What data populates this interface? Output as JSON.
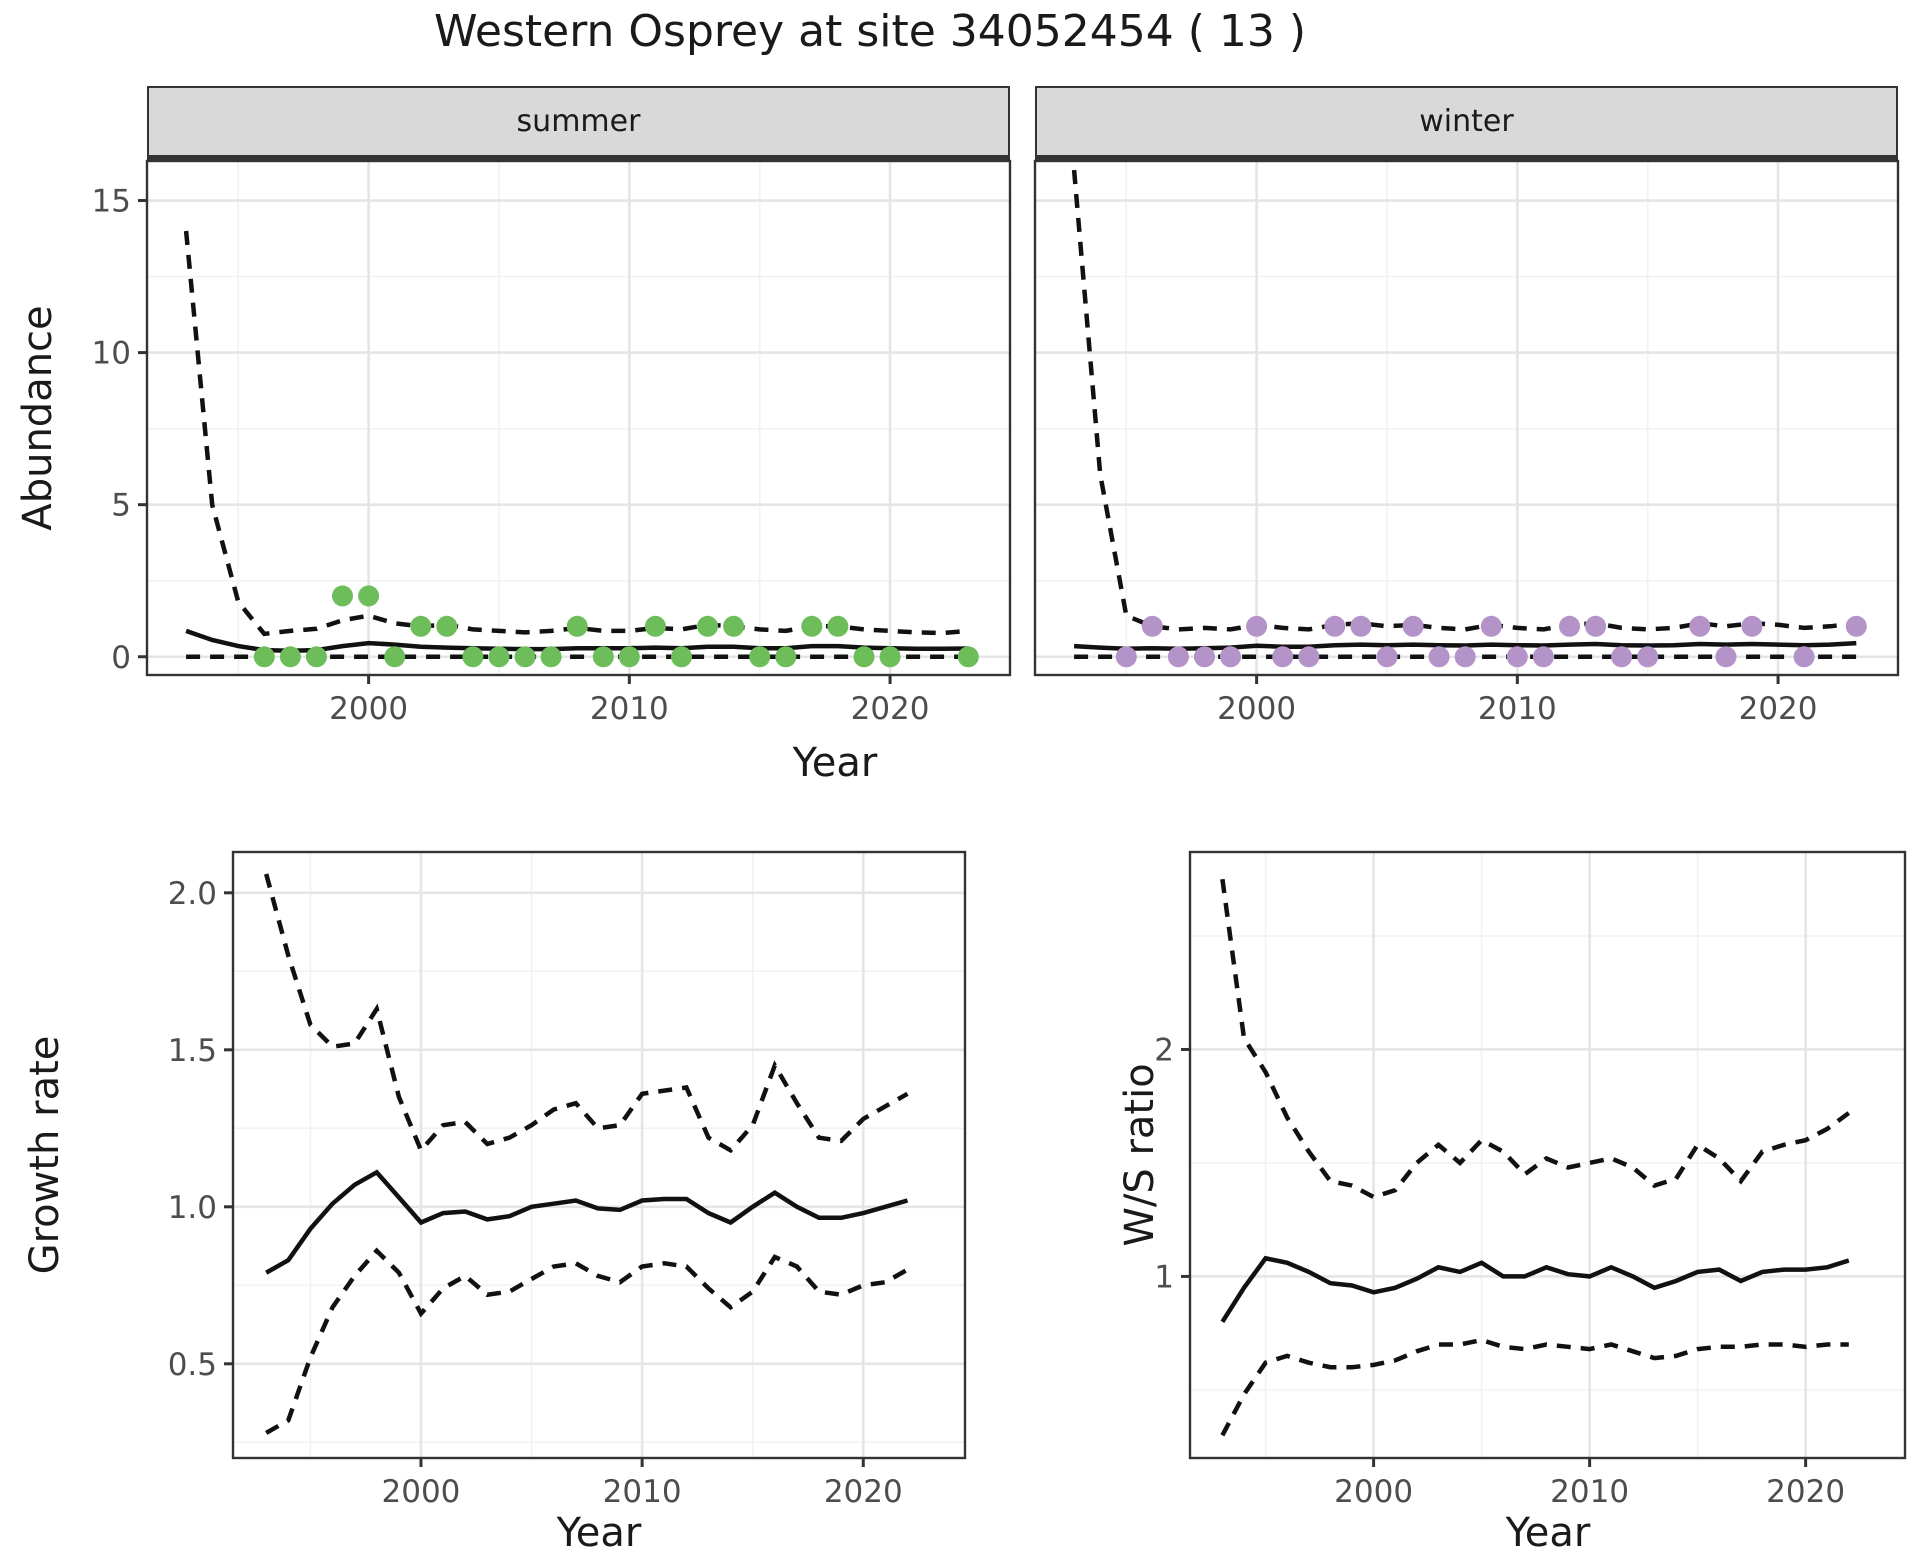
{
  "title": "Western Osprey at site 34052454 ( 13 )",
  "colors": {
    "summer_point": "#6DBE5B",
    "winter_point": "#B493C8",
    "line": "#111111",
    "grid_major": "#E5E5E5",
    "grid_minor": "#F2F2F2",
    "strip_bg": "#D9D9D9",
    "panel_border": "#333333",
    "axis_text": "#4D4D4D"
  },
  "chart_data": {
    "type": "line",
    "xlabel": "Year",
    "x_domain": [
      1991.5,
      2024.6
    ],
    "x_ticks": [
      2000,
      2010,
      2020
    ],
    "x_tick_labels": [
      "2000",
      "2010",
      "2020"
    ],
    "x_minor": [
      1995,
      2005,
      2015
    ],
    "panels": [
      {
        "id": "abundance-summer",
        "strip_label": "summer",
        "ylabel": "Abundance",
        "y_domain": [
          -0.6,
          16.3
        ],
        "y_ticks": [
          0,
          5,
          10,
          15
        ],
        "y_tick_labels": [
          "0",
          "5",
          "10",
          "15"
        ],
        "y_minor": [
          2.5,
          7.5,
          12.5
        ],
        "years": [
          1993,
          1994,
          1995,
          1996,
          1997,
          1998,
          1999,
          2000,
          2001,
          2002,
          2003,
          2004,
          2005,
          2006,
          2007,
          2008,
          2009,
          2010,
          2011,
          2012,
          2013,
          2014,
          2015,
          2016,
          2017,
          2018,
          2019,
          2020,
          2021,
          2022,
          2023
        ],
        "median": [
          0.85,
          0.55,
          0.35,
          0.22,
          0.2,
          0.22,
          0.35,
          0.45,
          0.4,
          0.33,
          0.3,
          0.28,
          0.26,
          0.25,
          0.25,
          0.28,
          0.28,
          0.28,
          0.3,
          0.28,
          0.33,
          0.33,
          0.28,
          0.28,
          0.35,
          0.35,
          0.3,
          0.28,
          0.26,
          0.26,
          0.27
        ],
        "upper": [
          14.0,
          5.0,
          1.8,
          0.75,
          0.85,
          0.92,
          1.2,
          1.35,
          1.1,
          1.0,
          1.05,
          0.9,
          0.85,
          0.8,
          0.85,
          0.95,
          0.85,
          0.85,
          0.95,
          0.9,
          1.05,
          1.0,
          0.9,
          0.85,
          1.0,
          1.0,
          0.9,
          0.85,
          0.8,
          0.78,
          0.85
        ],
        "lower": [
          0,
          0,
          0,
          0,
          0,
          0,
          0,
          0,
          0,
          0,
          0,
          0,
          0,
          0,
          0,
          0,
          0,
          0,
          0,
          0,
          0,
          0,
          0,
          0,
          0,
          0,
          0,
          0,
          0,
          0,
          0
        ],
        "points_years": [
          1996,
          1997,
          1998,
          1999,
          2000,
          2001,
          2002,
          2003,
          2004,
          2005,
          2006,
          2007,
          2008,
          2009,
          2010,
          2011,
          2012,
          2013,
          2014,
          2015,
          2016,
          2017,
          2018,
          2019,
          2020,
          2023
        ],
        "points_values": [
          0,
          0,
          0,
          2,
          2,
          0,
          1,
          1,
          0,
          0,
          0,
          0,
          1,
          0,
          0,
          1,
          0,
          1,
          1,
          0,
          0,
          1,
          1,
          0,
          0,
          0
        ],
        "point_color": "#6DBE5B"
      },
      {
        "id": "abundance-winter",
        "strip_label": "winter",
        "y_domain": [
          -0.6,
          16.3
        ],
        "y_ticks": [
          0,
          5,
          10,
          15
        ],
        "y_tick_labels": [
          "0",
          "5",
          "10",
          "15"
        ],
        "y_minor": [
          2.5,
          7.5,
          12.5
        ],
        "years": [
          1993,
          1994,
          1995,
          1996,
          1997,
          1998,
          1999,
          2000,
          2001,
          2002,
          2003,
          2004,
          2005,
          2006,
          2007,
          2008,
          2009,
          2010,
          2011,
          2012,
          2013,
          2014,
          2015,
          2016,
          2017,
          2018,
          2019,
          2020,
          2021,
          2022,
          2023
        ],
        "median": [
          0.35,
          0.3,
          0.26,
          0.28,
          0.26,
          0.28,
          0.3,
          0.36,
          0.33,
          0.33,
          0.38,
          0.4,
          0.38,
          0.4,
          0.38,
          0.37,
          0.4,
          0.38,
          0.37,
          0.4,
          0.42,
          0.38,
          0.37,
          0.38,
          0.42,
          0.4,
          0.42,
          0.4,
          0.38,
          0.4,
          0.45
        ],
        "upper": [
          16.0,
          6.0,
          1.35,
          1.0,
          0.9,
          0.95,
          0.9,
          1.05,
          0.95,
          0.9,
          1.05,
          1.1,
          1.0,
          1.05,
          0.95,
          0.9,
          1.05,
          0.95,
          0.9,
          1.05,
          1.1,
          0.95,
          0.9,
          0.95,
          1.1,
          1.0,
          1.1,
          1.05,
          0.95,
          1.0,
          1.1
        ],
        "lower": [
          0,
          0,
          0,
          0,
          0,
          0,
          0,
          0,
          0,
          0,
          0,
          0,
          0,
          0,
          0,
          0,
          0,
          0,
          0,
          0,
          0,
          0,
          0,
          0,
          0,
          0,
          0,
          0,
          0,
          0,
          0
        ],
        "points_years": [
          1995,
          1996,
          1997,
          1998,
          1999,
          2000,
          2001,
          2002,
          2003,
          2004,
          2005,
          2006,
          2007,
          2008,
          2009,
          2010,
          2011,
          2012,
          2013,
          2014,
          2015,
          2017,
          2018,
          2019,
          2021,
          2023
        ],
        "points_values": [
          0,
          1,
          0,
          0,
          0,
          1,
          0,
          0,
          1,
          1,
          0,
          1,
          0,
          0,
          1,
          0,
          0,
          1,
          1,
          0,
          0,
          1,
          0,
          1,
          0,
          1
        ],
        "point_color": "#B493C8"
      },
      {
        "id": "growth-rate",
        "ylabel": "Growth rate",
        "y_domain": [
          0.2,
          2.13
        ],
        "y_ticks": [
          0.5,
          1.0,
          1.5,
          2.0
        ],
        "y_tick_labels": [
          "0.5",
          "1.0",
          "1.5",
          "2.0"
        ],
        "y_minor": [
          0.25,
          0.75,
          1.25,
          1.75
        ],
        "years": [
          1993,
          1994,
          1995,
          1996,
          1997,
          1998,
          1999,
          2000,
          2001,
          2002,
          2003,
          2004,
          2005,
          2006,
          2007,
          2008,
          2009,
          2010,
          2011,
          2012,
          2013,
          2014,
          2015,
          2016,
          2017,
          2018,
          2019,
          2020,
          2021,
          2022
        ],
        "median": [
          0.79,
          0.83,
          0.93,
          1.01,
          1.07,
          1.11,
          1.03,
          0.95,
          0.98,
          0.985,
          0.96,
          0.97,
          1.0,
          1.01,
          1.02,
          0.995,
          0.99,
          1.02,
          1.025,
          1.025,
          0.98,
          0.95,
          1.0,
          1.045,
          1.0,
          0.965,
          0.965,
          0.98,
          1.0,
          1.02
        ],
        "upper": [
          2.06,
          1.8,
          1.58,
          1.51,
          1.52,
          1.63,
          1.35,
          1.18,
          1.26,
          1.27,
          1.2,
          1.22,
          1.26,
          1.31,
          1.33,
          1.25,
          1.26,
          1.36,
          1.37,
          1.38,
          1.22,
          1.18,
          1.26,
          1.45,
          1.33,
          1.22,
          1.21,
          1.28,
          1.32,
          1.36
        ],
        "lower": [
          0.28,
          0.32,
          0.52,
          0.68,
          0.78,
          0.86,
          0.79,
          0.66,
          0.74,
          0.78,
          0.72,
          0.73,
          0.77,
          0.81,
          0.82,
          0.78,
          0.76,
          0.81,
          0.82,
          0.81,
          0.74,
          0.68,
          0.73,
          0.84,
          0.81,
          0.73,
          0.72,
          0.75,
          0.76,
          0.8
        ]
      },
      {
        "id": "ws-ratio",
        "ylabel": "W/S ratio",
        "y_domain": [
          0.2,
          2.87
        ],
        "y_ticks": [
          1,
          2
        ],
        "y_tick_labels": [
          "1",
          "2"
        ],
        "y_minor": [
          0.5,
          1.5,
          2.5
        ],
        "years": [
          1993,
          1994,
          1995,
          1996,
          1997,
          1998,
          1999,
          2000,
          2001,
          2002,
          2003,
          2004,
          2005,
          2006,
          2007,
          2008,
          2009,
          2010,
          2011,
          2012,
          2013,
          2014,
          2015,
          2016,
          2017,
          2018,
          2019,
          2020,
          2021,
          2022
        ],
        "median": [
          0.8,
          0.95,
          1.08,
          1.06,
          1.02,
          0.97,
          0.96,
          0.93,
          0.95,
          0.99,
          1.04,
          1.02,
          1.06,
          1.0,
          1.0,
          1.04,
          1.01,
          1.0,
          1.04,
          1.0,
          0.95,
          0.98,
          1.02,
          1.03,
          0.98,
          1.02,
          1.03,
          1.03,
          1.04,
          1.07
        ],
        "upper": [
          2.75,
          2.05,
          1.9,
          1.7,
          1.55,
          1.42,
          1.4,
          1.35,
          1.38,
          1.5,
          1.58,
          1.5,
          1.6,
          1.55,
          1.45,
          1.52,
          1.48,
          1.5,
          1.52,
          1.48,
          1.4,
          1.43,
          1.58,
          1.52,
          1.42,
          1.55,
          1.58,
          1.6,
          1.65,
          1.72
        ],
        "lower": [
          0.3,
          0.48,
          0.62,
          0.65,
          0.62,
          0.6,
          0.6,
          0.61,
          0.63,
          0.67,
          0.7,
          0.7,
          0.72,
          0.69,
          0.68,
          0.7,
          0.69,
          0.68,
          0.7,
          0.67,
          0.64,
          0.65,
          0.68,
          0.69,
          0.69,
          0.7,
          0.7,
          0.69,
          0.7,
          0.7
        ]
      }
    ]
  }
}
